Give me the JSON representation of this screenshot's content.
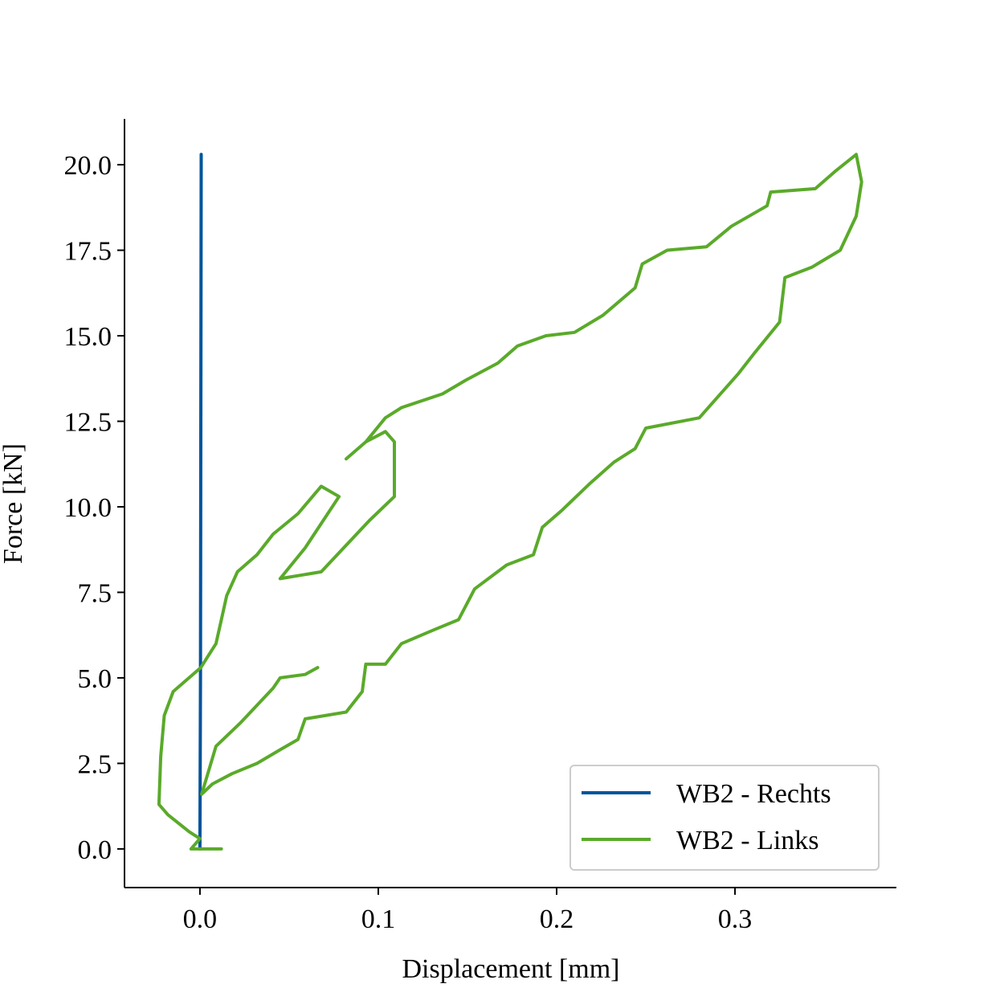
{
  "chart_data": {
    "type": "line",
    "x_label": "Displacement [mm]",
    "y_label": "Force [kN]",
    "xlim": [
      -0.0423,
      0.3905
    ],
    "ylim": [
      -1.13,
      21.34
    ],
    "xticks": [
      {
        "value": 0,
        "label": "0.0"
      },
      0.1,
      0.2,
      0.3
    ],
    "yticks": [
      {
        "value": 0,
        "label": "0.0"
      },
      2.5,
      {
        "value": 5,
        "label": "5.0"
      },
      7.5,
      {
        "value": 10,
        "label": "10.0"
      },
      12.5,
      {
        "value": 15,
        "label": "15.0"
      },
      17.5,
      {
        "value": 20,
        "label": "20.0"
      }
    ],
    "legend": "lower right",
    "series": [
      {
        "name": "WB2 - Rechts",
        "color": "#00549c",
        "x": [
          0.0,
          0.0003,
          0.0005,
          0.0007
        ],
        "values": [
          0.0,
          5.0,
          12.0,
          20.3
        ]
      },
      {
        "name": "WB2 - Links",
        "color": "#5aaa2a",
        "x": [
          0.012,
          -0.005,
          0.0,
          -0.006,
          -0.018,
          -0.023,
          -0.022,
          -0.02,
          -0.015,
          0.0005,
          0.009,
          0.012,
          0.015,
          0.021,
          0.032,
          0.041,
          0.055,
          0.068,
          0.078,
          0.059,
          0.045,
          0.068,
          0.095,
          0.109,
          0.109,
          0.104,
          0.093,
          0.082,
          0.093,
          0.104,
          0.113,
          0.136,
          0.149,
          0.167,
          0.178,
          0.194,
          0.21,
          0.226,
          0.244,
          0.248,
          0.262,
          0.284,
          0.298,
          0.318,
          0.32,
          0.345,
          0.356,
          0.368,
          0.371,
          0.368,
          0.359,
          0.343,
          0.328,
          0.325,
          0.311,
          0.302,
          0.28,
          0.25,
          0.244,
          0.232,
          0.219,
          0.203,
          0.192,
          0.187,
          0.172,
          0.154,
          0.145,
          0.131,
          0.113,
          0.104,
          0.093,
          0.091,
          0.082,
          0.059,
          0.055,
          0.045,
          0.032,
          0.018,
          0.007,
          0.001,
          0.009,
          0.023,
          0.032,
          0.041,
          0.045,
          0.059,
          0.066
        ],
        "values": [
          0.0,
          0.0,
          0.3,
          0.5,
          1.0,
          1.3,
          2.7,
          3.9,
          4.6,
          5.3,
          6.0,
          6.7,
          7.4,
          8.1,
          8.6,
          9.2,
          9.8,
          10.6,
          10.3,
          8.8,
          7.9,
          8.1,
          9.6,
          10.3,
          11.9,
          12.2,
          11.9,
          11.4,
          11.9,
          12.6,
          12.9,
          13.3,
          13.7,
          14.2,
          14.7,
          15.0,
          15.1,
          15.6,
          16.4,
          17.1,
          17.5,
          17.6,
          18.2,
          18.8,
          19.2,
          19.3,
          19.8,
          20.3,
          19.5,
          18.5,
          17.5,
          17.0,
          16.7,
          15.4,
          14.5,
          13.9,
          12.6,
          12.3,
          11.7,
          11.3,
          10.7,
          9.9,
          9.4,
          8.6,
          8.3,
          7.6,
          6.7,
          6.4,
          6.0,
          5.4,
          5.4,
          4.6,
          4.0,
          3.8,
          3.2,
          2.9,
          2.5,
          2.2,
          1.9,
          1.6,
          3.0,
          3.7,
          4.2,
          4.7,
          5.0,
          5.1,
          5.3
        ]
      }
    ]
  }
}
